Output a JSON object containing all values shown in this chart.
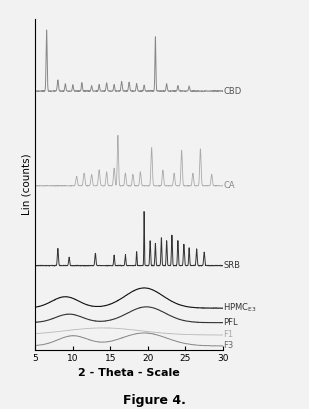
{
  "title": "Figure 4.",
  "xlabel": "2 - Theta - Scale",
  "ylabel": "Lin (counts)",
  "xlim": [
    5,
    30
  ],
  "x_ticks": [
    5,
    10,
    15,
    20,
    25,
    30
  ],
  "background_color": "#f0f0f0",
  "series_colors": {
    "CBD": "#888888",
    "CA": "#aaaaaa",
    "SRB": "#333333",
    "HPMC": "#111111",
    "PFL": "#333333",
    "F1": "#bbbbbb",
    "F3": "#888888"
  },
  "label_colors": {
    "CBD": "#555555",
    "CA": "#888888",
    "SRB": "#333333",
    "HPMC": "#333333",
    "PFL": "#333333",
    "F1": "#aaaaaa",
    "F3": "#666666"
  },
  "offsets": {
    "CBD": 3.5,
    "CA": 2.2,
    "SRB": 1.1,
    "HPMC": 0.52,
    "PFL": 0.32,
    "F1": 0.15,
    "F3": 0.0
  },
  "scale": {
    "CBD": 0.85,
    "CA": 0.7,
    "SRB": 0.75,
    "HPMC": 0.28,
    "PFL": 0.22,
    "F1": 0.1,
    "F3": 0.18
  }
}
